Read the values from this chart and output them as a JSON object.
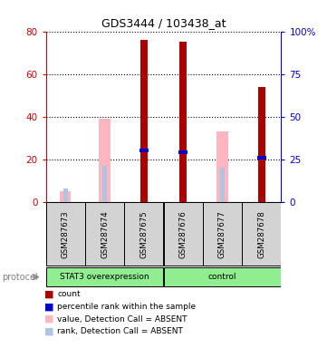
{
  "title": "GDS3444 / 103438_at",
  "samples": [
    "GSM287673",
    "GSM287674",
    "GSM287675",
    "GSM287676",
    "GSM287677",
    "GSM287678"
  ],
  "left_ylim": [
    0,
    80
  ],
  "right_ylim": [
    0,
    100
  ],
  "left_yticks": [
    0,
    20,
    40,
    60,
    80
  ],
  "right_yticks": [
    0,
    25,
    50,
    75,
    100
  ],
  "right_yticklabels": [
    "0",
    "25",
    "50",
    "75",
    "100%"
  ],
  "count_values": [
    0,
    0,
    76,
    75,
    0,
    54
  ],
  "rank_pct_values": [
    0,
    0,
    30,
    29,
    0,
    26
  ],
  "absent_value_bars": [
    5,
    39,
    0,
    0,
    33,
    0
  ],
  "absent_rank_pct_bars": [
    8,
    21,
    0,
    0,
    20,
    25
  ],
  "count_color": "#AA0000",
  "rank_color": "#0000CC",
  "absent_value_color": "#FFB6C1",
  "absent_rank_color": "#B0C4DE",
  "left_axis_color": "#CC0000",
  "right_axis_color": "#0000CC",
  "group1_label": "STAT3 overexpression",
  "group1_indices": [
    0,
    1,
    2
  ],
  "group2_label": "control",
  "group2_indices": [
    3,
    4,
    5
  ],
  "group_color": "#90EE90",
  "legend_items": [
    {
      "label": "count",
      "color": "#AA0000"
    },
    {
      "label": "percentile rank within the sample",
      "color": "#0000CC"
    },
    {
      "label": "value, Detection Call = ABSENT",
      "color": "#FFB6C1"
    },
    {
      "label": "rank, Detection Call = ABSENT",
      "color": "#B0C4DE"
    }
  ]
}
